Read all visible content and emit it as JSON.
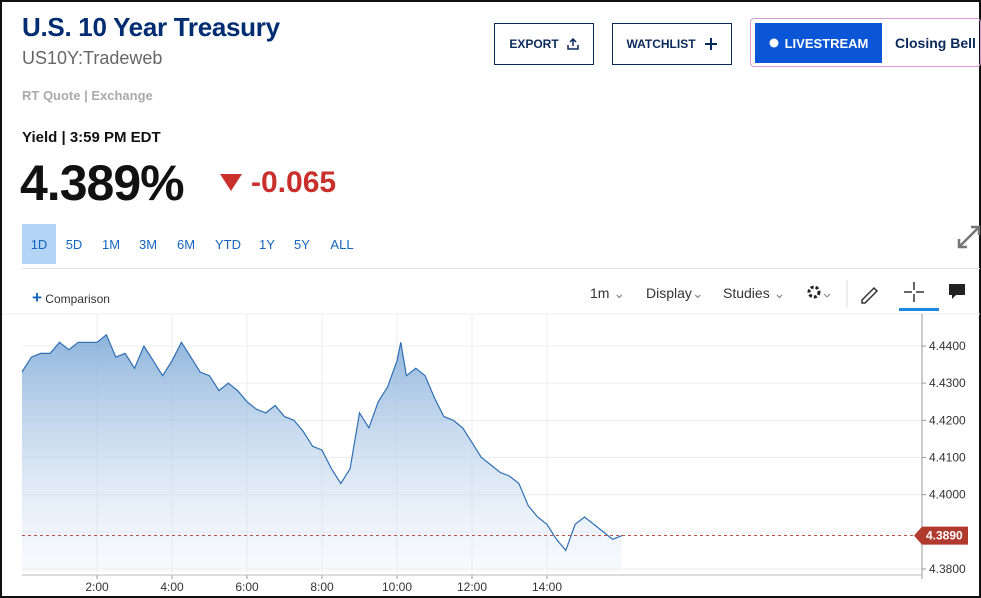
{
  "header": {
    "title": "U.S. 10 Year Treasury",
    "symbol": "US10Y:Tradeweb",
    "quote_source": "RT Quote | Exchange",
    "quote_label": "Yield | 3:59 PM EDT",
    "price": "4.389%",
    "change": "-0.065"
  },
  "buttons": {
    "export": "EXPORT",
    "watchlist": "WATCHLIST",
    "livestream": "LIVESTREAM",
    "closing_bell": "Closing Bell"
  },
  "ranges": [
    "1D",
    "5D",
    "1M",
    "3M",
    "6M",
    "YTD",
    "1Y",
    "5Y",
    "ALL"
  ],
  "toolbar": {
    "comparison": "Comparison",
    "interval": "1m",
    "display": "Display",
    "studies": "Studies"
  },
  "chart_data": {
    "type": "area",
    "x": [
      0,
      0.25,
      0.5,
      0.75,
      1,
      1.25,
      1.5,
      1.75,
      2,
      2.25,
      2.5,
      2.75,
      3,
      3.25,
      3.5,
      3.75,
      4,
      4.25,
      4.5,
      4.75,
      5,
      5.25,
      5.5,
      5.75,
      6,
      6.25,
      6.5,
      6.75,
      7,
      7.25,
      7.5,
      7.75,
      8,
      8.25,
      8.5,
      8.75,
      9,
      9.25,
      9.5,
      9.75,
      10,
      10.1,
      10.25,
      10.5,
      10.75,
      11,
      11.25,
      11.5,
      11.75,
      12,
      12.25,
      12.5,
      12.75,
      13,
      13.25,
      13.5,
      13.75,
      14,
      14.25,
      14.5,
      14.75,
      15,
      15.25,
      15.5,
      15.75,
      16
    ],
    "series": [
      {
        "color": "#2f6fb3",
        "values": [
          4.433,
          4.437,
          4.438,
          4.438,
          4.441,
          4.439,
          4.441,
          4.441,
          4.441,
          4.443,
          4.437,
          4.438,
          4.434,
          4.44,
          4.436,
          4.432,
          4.436,
          4.441,
          4.437,
          4.433,
          4.432,
          4.428,
          4.43,
          4.428,
          4.425,
          4.423,
          4.422,
          4.424,
          4.421,
          4.42,
          4.417,
          4.413,
          4.412,
          4.407,
          4.403,
          4.407,
          4.422,
          4.418,
          4.425,
          4.429,
          4.436,
          4.441,
          4.432,
          4.434,
          4.432,
          4.426,
          4.421,
          4.42,
          4.418,
          4.414,
          4.41,
          4.408,
          4.406,
          4.405,
          4.403,
          4.397,
          4.394,
          4.392,
          4.388,
          4.385,
          4.392,
          4.394,
          4.392,
          4.39,
          4.388,
          4.389
        ]
      }
    ],
    "xlim": [
      0,
      24
    ],
    "xticks": [
      {
        "value": 2,
        "label": "2:00"
      },
      {
        "value": 4,
        "label": "4:00"
      },
      {
        "value": 6,
        "label": "6:00"
      },
      {
        "value": 8,
        "label": "8:00"
      },
      {
        "value": 10,
        "label": "10:00"
      },
      {
        "value": 12,
        "label": "12:00"
      },
      {
        "value": 14,
        "label": "14:00"
      }
    ],
    "ylim": [
      4.3792,
      4.4486
    ],
    "yticks": [
      {
        "value": 4.38,
        "label": "4.3800"
      },
      {
        "value": 4.39,
        "label": "4.3900"
      },
      {
        "value": 4.4,
        "label": "4.4000"
      },
      {
        "value": 4.41,
        "label": "4.4100"
      },
      {
        "value": 4.42,
        "label": "4.4200"
      },
      {
        "value": 4.43,
        "label": "4.4300"
      },
      {
        "value": 4.44,
        "label": "4.4400"
      }
    ],
    "current_value": {
      "value": 4.389,
      "label": "4.3890"
    },
    "grid": true
  }
}
